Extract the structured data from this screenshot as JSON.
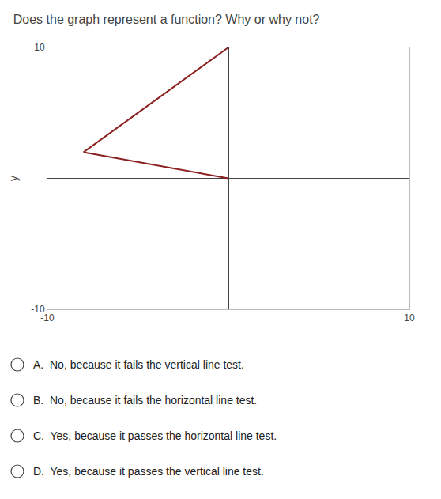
{
  "chart_data": {
    "type": "line",
    "title": "Does the graph represent a function? Why or why not?",
    "x": [
      0,
      -8,
      0
    ],
    "values": [
      10,
      2,
      0
    ],
    "color": "#8B2020",
    "xlim": [
      -10,
      10
    ],
    "ylim": [
      -10,
      10
    ],
    "xticks": [
      -10,
      10
    ],
    "yticks": [
      -10,
      10
    ],
    "ylabel": "y",
    "grid": true,
    "annotations": [
      "A.  No, because it fails the vertical line test.",
      "B.  No, because it fails the horizontal line test.",
      "C.  Yes, because it passes the horizontal line test.",
      "D.  Yes, because it passes the vertical line test."
    ]
  }
}
